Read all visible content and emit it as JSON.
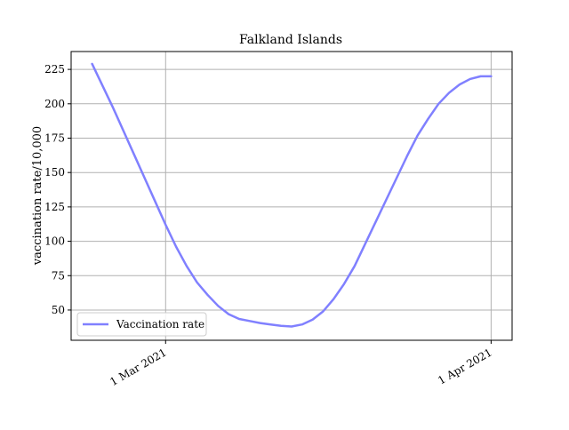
{
  "chart_data": {
    "type": "line",
    "title": "Falkland Islands",
    "xlabel": "",
    "ylabel": "vaccination rate/10,000",
    "x_start": "2021-02-22",
    "x_end": "2021-04-01",
    "xlim": [
      "2021-02-20",
      "2021-04-03"
    ],
    "ylim": [
      28,
      238
    ],
    "yticks": [
      50,
      75,
      100,
      125,
      150,
      175,
      200,
      225
    ],
    "xticks": [
      {
        "date": "2021-03-01",
        "label": "1 Mar 2021"
      },
      {
        "date": "2021-04-01",
        "label": "1 Apr 2021"
      }
    ],
    "grid": true,
    "legend": {
      "placement": "lower-left",
      "entries": [
        "Vaccination rate"
      ]
    },
    "series": [
      {
        "name": "Vaccination rate",
        "color": "#8080ff",
        "points": [
          [
            "2021-02-22",
            229
          ],
          [
            "2021-02-23",
            213
          ],
          [
            "2021-02-24",
            197
          ],
          [
            "2021-02-25",
            180
          ],
          [
            "2021-02-26",
            163
          ],
          [
            "2021-02-27",
            146
          ],
          [
            "2021-02-28",
            129
          ],
          [
            "2021-03-01",
            112
          ],
          [
            "2021-03-02",
            96
          ],
          [
            "2021-03-03",
            82
          ],
          [
            "2021-03-04",
            70
          ],
          [
            "2021-03-05",
            61
          ],
          [
            "2021-03-06",
            53
          ],
          [
            "2021-03-07",
            47
          ],
          [
            "2021-03-08",
            43.5
          ],
          [
            "2021-03-09",
            42
          ],
          [
            "2021-03-10",
            40.5
          ],
          [
            "2021-03-11",
            39.5
          ],
          [
            "2021-03-12",
            38.5
          ],
          [
            "2021-03-13",
            38
          ],
          [
            "2021-03-14",
            39.5
          ],
          [
            "2021-03-15",
            43
          ],
          [
            "2021-03-16",
            49
          ],
          [
            "2021-03-17",
            58
          ],
          [
            "2021-03-18",
            69
          ],
          [
            "2021-03-19",
            82
          ],
          [
            "2021-03-20",
            98
          ],
          [
            "2021-03-21",
            114
          ],
          [
            "2021-03-22",
            130
          ],
          [
            "2021-03-23",
            146
          ],
          [
            "2021-03-24",
            162
          ],
          [
            "2021-03-25",
            177
          ],
          [
            "2021-03-26",
            189
          ],
          [
            "2021-03-27",
            200
          ],
          [
            "2021-03-28",
            208
          ],
          [
            "2021-03-29",
            214
          ],
          [
            "2021-03-30",
            218
          ],
          [
            "2021-03-31",
            220
          ],
          [
            "2021-04-01",
            220
          ]
        ]
      }
    ]
  }
}
